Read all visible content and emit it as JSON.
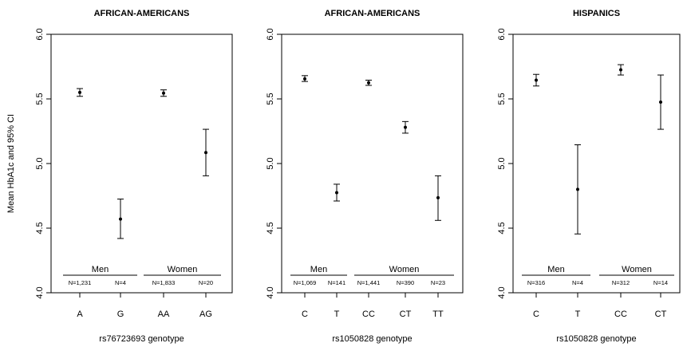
{
  "y_axis_label": "Mean HbA1c and 95% CI",
  "chart_data": [
    {
      "type": "scatter",
      "title": "AFRICAN-AMERICANS",
      "xlabel": "rs76723693 genotype",
      "ylabel": "Mean HbA1c and 95% CI",
      "ylim": [
        4.0,
        6.0
      ],
      "yticks": [
        "4.0",
        "4.5",
        "5.0",
        "5.5",
        "6.0"
      ],
      "categories": [
        "A",
        "G",
        "AA",
        "AG"
      ],
      "means": [
        5.55,
        4.57,
        5.545,
        5.085
      ],
      "ci_low": [
        5.52,
        4.42,
        5.52,
        4.905
      ],
      "ci_high": [
        5.58,
        4.725,
        5.57,
        5.265
      ],
      "n_labels": [
        "N=1,231",
        "N=4",
        "N=1,833",
        "N=20"
      ],
      "groups": [
        {
          "label": "Men",
          "start": 0,
          "end": 1
        },
        {
          "label": "Women",
          "start": 2,
          "end": 3
        }
      ]
    },
    {
      "type": "scatter",
      "title": "AFRICAN-AMERICANS",
      "xlabel": "rs1050828 genotype",
      "ylabel": "",
      "ylim": [
        4.0,
        6.0
      ],
      "yticks": [
        "4.0",
        "4.5",
        "5.0",
        "5.5",
        "6.0"
      ],
      "categories": [
        "C",
        "T",
        "CC",
        "CT",
        "TT"
      ],
      "means": [
        5.655,
        4.775,
        5.625,
        5.28,
        4.735
      ],
      "ci_low": [
        5.635,
        4.71,
        5.605,
        5.235,
        4.56
      ],
      "ci_high": [
        5.68,
        4.84,
        5.645,
        5.325,
        4.905
      ],
      "n_labels": [
        "N=1,069",
        "N=141",
        "N=1,441",
        "N=390",
        "N=23"
      ],
      "groups": [
        {
          "label": "Men",
          "start": 0,
          "end": 1
        },
        {
          "label": "Women",
          "start": 2,
          "end": 4
        }
      ]
    },
    {
      "type": "scatter",
      "title": "HISPANICS",
      "xlabel": "rs1050828 genotype",
      "ylabel": "",
      "ylim": [
        4.0,
        6.0
      ],
      "yticks": [
        "4.0",
        "4.5",
        "5.0",
        "5.5",
        "6.0"
      ],
      "categories": [
        "C",
        "T",
        "CC",
        "CT"
      ],
      "means": [
        5.645,
        4.8,
        5.725,
        5.475
      ],
      "ci_low": [
        5.6,
        4.455,
        5.685,
        5.265
      ],
      "ci_high": [
        5.69,
        5.145,
        5.765,
        5.685
      ],
      "n_labels": [
        "N=316",
        "N=4",
        "N=312",
        "N=14"
      ],
      "groups": [
        {
          "label": "Men",
          "start": 0,
          "end": 1
        },
        {
          "label": "Women",
          "start": 2,
          "end": 3
        }
      ]
    }
  ]
}
